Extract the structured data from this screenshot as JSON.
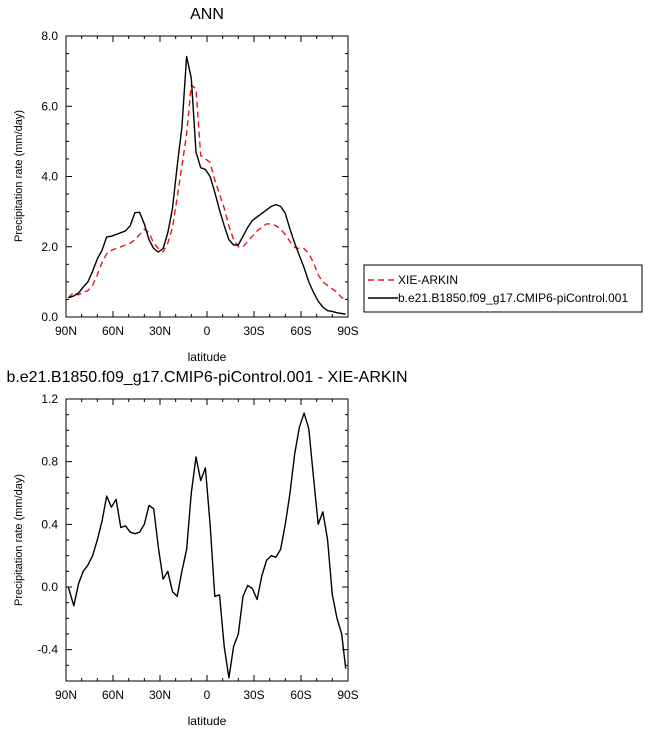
{
  "chart_data": [
    {
      "type": "line",
      "title": "ANN",
      "xlabel": "latitude",
      "ylabel": "Precipitation rate (mm/day)",
      "xlim": [
        90,
        -90
      ],
      "ylim": [
        0,
        8
      ],
      "x_ticks": [
        {
          "value": 90,
          "label": "90N"
        },
        {
          "value": 60,
          "label": "60N"
        },
        {
          "value": 30,
          "label": "30N"
        },
        {
          "value": 0,
          "label": "0"
        },
        {
          "value": -30,
          "label": "30S"
        },
        {
          "value": -60,
          "label": "60S"
        },
        {
          "value": -90,
          "label": "90S"
        }
      ],
      "y_ticks": [
        {
          "value": 0,
          "label": "0.0"
        },
        {
          "value": 2,
          "label": "2.0"
        },
        {
          "value": 4,
          "label": "4.0"
        },
        {
          "value": 6,
          "label": "6.0"
        },
        {
          "value": 8,
          "label": "8.0"
        }
      ],
      "legend": "outside-right",
      "grid": false,
      "series": [
        {
          "name": "XIE-ARKIN",
          "color": "#e8161a",
          "dash": "dashed",
          "x": [
            88.5,
            85,
            82,
            79,
            76,
            73,
            70,
            67,
            64,
            61,
            58,
            55,
            52,
            49,
            46,
            43,
            40,
            37,
            34,
            31,
            28,
            25,
            22,
            19,
            16,
            13,
            10,
            7,
            4,
            1,
            -2,
            -5,
            -8,
            -11,
            -14,
            -17,
            -20,
            -23,
            -26,
            -29,
            -32,
            -35,
            -38,
            -41,
            -44,
            -47,
            -50,
            -53,
            -56,
            -59,
            -62,
            -65,
            -68,
            -71,
            -74,
            -77,
            -80,
            -83,
            -86,
            -88.5
          ],
          "values": [
            0.55,
            0.7,
            0.63,
            0.7,
            0.75,
            0.9,
            1.2,
            1.55,
            1.8,
            1.9,
            1.95,
            2.0,
            2.05,
            2.1,
            2.2,
            2.35,
            2.5,
            2.4,
            2.1,
            1.95,
            1.85,
            2.1,
            2.55,
            3.4,
            4.3,
            5.2,
            6.6,
            6.5,
            4.6,
            4.5,
            4.4,
            3.9,
            3.5,
            3.1,
            2.6,
            2.2,
            2.0,
            2.0,
            2.15,
            2.3,
            2.45,
            2.55,
            2.65,
            2.65,
            2.6,
            2.5,
            2.35,
            2.15,
            1.98,
            1.95,
            1.95,
            1.8,
            1.55,
            1.2,
            1.0,
            0.9,
            0.8,
            0.7,
            0.55,
            0.52
          ]
        },
        {
          "name": "b.e21.B1850.f09_g17.CMIP6-piControl.001",
          "color": "#000000",
          "dash": "solid",
          "x": [
            88.5,
            85,
            82,
            79,
            76,
            73,
            70,
            67,
            64,
            61,
            58,
            55,
            52,
            49,
            46,
            43,
            40,
            37,
            34,
            31,
            28,
            25,
            22,
            19,
            16,
            13,
            10,
            7,
            4,
            1,
            -2,
            -5,
            -8,
            -11,
            -14,
            -17,
            -20,
            -23,
            -26,
            -29,
            -32,
            -35,
            -38,
            -41,
            -44,
            -47,
            -50,
            -53,
            -56,
            -59,
            -62,
            -65,
            -68,
            -71,
            -74,
            -77,
            -80,
            -83,
            -86,
            -88.5
          ],
          "values": [
            0.55,
            0.6,
            0.68,
            0.85,
            1.0,
            1.3,
            1.65,
            1.9,
            2.28,
            2.3,
            2.35,
            2.4,
            2.45,
            2.6,
            2.97,
            2.98,
            2.65,
            2.2,
            1.95,
            1.85,
            1.95,
            2.4,
            3.1,
            4.3,
            5.4,
            7.42,
            6.8,
            4.7,
            4.25,
            4.2,
            4.0,
            3.55,
            3.05,
            2.6,
            2.2,
            2.05,
            2.05,
            2.3,
            2.55,
            2.75,
            2.85,
            2.95,
            3.05,
            3.15,
            3.2,
            3.15,
            2.95,
            2.5,
            2.1,
            1.75,
            1.4,
            1.0,
            0.7,
            0.45,
            0.28,
            0.18,
            0.16,
            0.12,
            0.1,
            0.08
          ]
        }
      ]
    },
    {
      "type": "line",
      "title": "b.e21.B1850.f09_g17.CMIP6-piControl.001 - XIE-ARKIN",
      "xlabel": "latitude",
      "ylabel": "Precipitation rate (mm/day)",
      "xlim": [
        90,
        -90
      ],
      "ylim": [
        -0.6,
        1.2
      ],
      "x_ticks": [
        {
          "value": 90,
          "label": "90N"
        },
        {
          "value": 60,
          "label": "60N"
        },
        {
          "value": 30,
          "label": "30N"
        },
        {
          "value": 0,
          "label": "0"
        },
        {
          "value": -30,
          "label": "30S"
        },
        {
          "value": -60,
          "label": "60S"
        },
        {
          "value": -90,
          "label": "90S"
        }
      ],
      "y_ticks": [
        {
          "value": -0.4,
          "label": "-0.4"
        },
        {
          "value": 0.0,
          "label": "0.0"
        },
        {
          "value": 0.4,
          "label": "0.4"
        },
        {
          "value": 0.8,
          "label": "0.8"
        },
        {
          "value": 1.2,
          "label": "1.2"
        }
      ],
      "grid": false,
      "series": [
        {
          "color": "#000000",
          "dash": "solid",
          "x": [
            88.5,
            85,
            82,
            79,
            76,
            73,
            70,
            67,
            64,
            61,
            58,
            55,
            52,
            49,
            46,
            43,
            40,
            37,
            34,
            31,
            28,
            25,
            22,
            19,
            16,
            13,
            10,
            7,
            4,
            1,
            -2,
            -5,
            -8,
            -11,
            -14,
            -17,
            -20,
            -23,
            -26,
            -29,
            -32,
            -35,
            -38,
            -41,
            -44,
            -47,
            -50,
            -53,
            -56,
            -59,
            -62,
            -65,
            -68,
            -71,
            -74,
            -77,
            -80,
            -83,
            -86,
            -88.5
          ],
          "values": [
            0.0,
            -0.12,
            0.02,
            0.1,
            0.14,
            0.2,
            0.3,
            0.42,
            0.58,
            0.51,
            0.56,
            0.38,
            0.39,
            0.35,
            0.34,
            0.35,
            0.4,
            0.52,
            0.5,
            0.25,
            0.05,
            0.1,
            -0.03,
            -0.06,
            0.1,
            0.24,
            0.6,
            0.83,
            0.68,
            0.76,
            0.4,
            -0.06,
            -0.05,
            -0.38,
            -0.58,
            -0.38,
            -0.3,
            -0.06,
            0.01,
            -0.01,
            -0.08,
            0.07,
            0.17,
            0.2,
            0.19,
            0.24,
            0.4,
            0.6,
            0.85,
            1.02,
            1.11,
            1.01,
            0.7,
            0.4,
            0.48,
            0.3,
            -0.05,
            -0.2,
            -0.3,
            -0.52
          ]
        }
      ]
    }
  ]
}
